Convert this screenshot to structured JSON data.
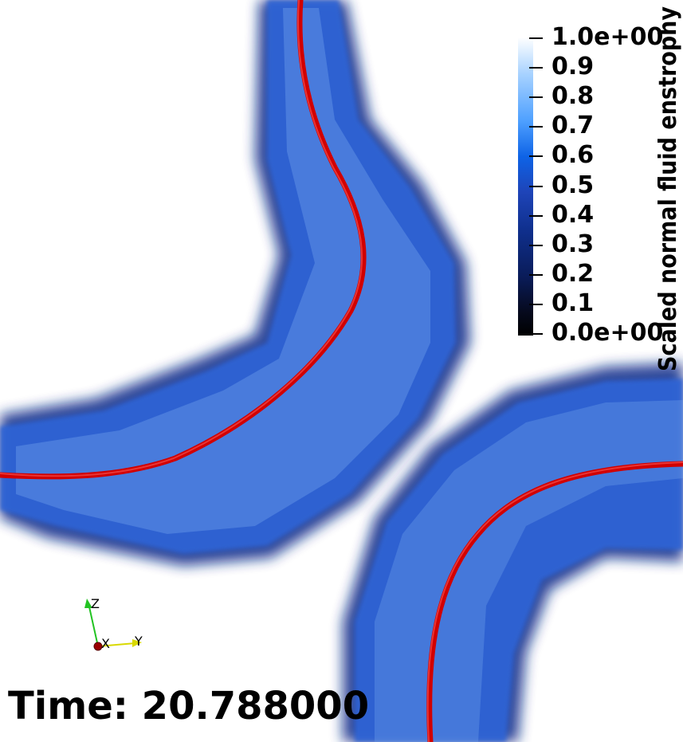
{
  "colorbar": {
    "title": "Scaled normal fluid enstrophy",
    "ticks": [
      "1.0e+00",
      "0.9",
      "0.8",
      "0.7",
      "0.6",
      "0.5",
      "0.4",
      "0.3",
      "0.2",
      "0.1",
      "0.0e+00"
    ],
    "range": [
      0,
      1
    ]
  },
  "axes_triad": {
    "z": "Z",
    "x": "X",
    "y": "Y"
  },
  "time_label": "Time: 20.788000",
  "colors": {
    "vortex_line": "#d10000",
    "tube": "#2a5fd0"
  }
}
